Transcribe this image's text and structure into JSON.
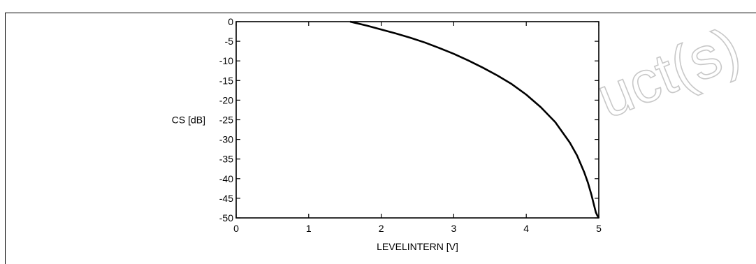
{
  "chart_data": {
    "type": "line",
    "title": "",
    "xlabel": "LEVELINTERN [V]",
    "ylabel": "CS [dB]",
    "xlim": [
      0,
      5
    ],
    "ylim": [
      -50,
      0
    ],
    "xticks": [
      0,
      1,
      2,
      3,
      4,
      5
    ],
    "yticks": [
      0,
      -5,
      -10,
      -15,
      -20,
      -25,
      -30,
      -35,
      -40,
      -45,
      -50
    ],
    "grid": false,
    "series": [
      {
        "x": [
          1.57,
          1.8,
          2.0,
          2.2,
          2.4,
          2.6,
          2.8,
          3.0,
          3.2,
          3.4,
          3.6,
          3.8,
          4.0,
          4.2,
          4.4,
          4.6,
          4.7,
          4.8,
          4.85,
          4.9,
          4.93,
          4.96,
          4.98,
          5.0
        ],
        "y": [
          0,
          -1.0,
          -2.0,
          -3.0,
          -4.1,
          -5.3,
          -6.7,
          -8.2,
          -9.9,
          -11.7,
          -13.7,
          -15.9,
          -18.6,
          -21.8,
          -25.6,
          -30.8,
          -34.1,
          -38.4,
          -41.0,
          -44.2,
          -46.4,
          -48.6,
          -49.4,
          -50
        ]
      }
    ],
    "color": "#000000"
  },
  "watermark": {
    "text": "uct(s)",
    "color": "#c8c8c8"
  }
}
